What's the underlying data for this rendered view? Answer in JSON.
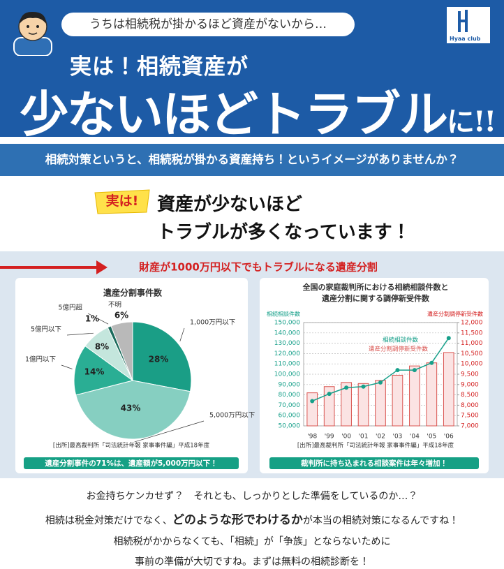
{
  "header": {
    "speech": "うちは相続税が掛かるほど資産がないから…",
    "logo": "Hyaa club",
    "title_line1": "実は！相続資産が",
    "title_main": "少ないほどトラブル",
    "title_suffix": "に!!"
  },
  "subtitle": "相続対策というと、相続税が掛かる資産持ち！というイメージがありませんか？",
  "callout": {
    "badge": "実は!",
    "lines": [
      "資産が少ないほど",
      "トラブルが多くなっています！"
    ]
  },
  "section_heading": "財産が1000万円以下でもトラブルになる遺産分割",
  "chart_data": [
    {
      "type": "pie",
      "title": "遺産分割事件数",
      "categories": [
        "1,000万円以下",
        "5,000万円以下",
        "1億円以下",
        "5億円以下",
        "5億円超",
        "不明"
      ],
      "values": [
        28,
        43,
        14,
        8,
        1,
        6
      ],
      "value_labels": [
        "28%",
        "43%",
        "14%",
        "8%",
        "1%",
        "6%"
      ],
      "colors": [
        "#1a9e86",
        "#86cfc1",
        "#2aae94",
        "#c4e6dd",
        "#1b6b5c",
        "#b9b9b9"
      ],
      "source": "[出所]最高裁判所「司法統計年報 家事事件編」平成18年度",
      "caption": "遺産分割事件の71%は、遺産額が5,000万円以下！"
    },
    {
      "type": "bar",
      "title": [
        "全国の家庭裁判所における相続相談件数と",
        "遺産分割に関する調停新受件数"
      ],
      "y_label": "相続相談件数",
      "y2_label": "遺産分割調停新受件数",
      "categories": [
        "'98",
        "'99",
        "'00",
        "'01",
        "'02",
        "'03",
        "'04",
        "'05",
        "'06"
      ],
      "series": [
        {
          "name": "遺産分割調停新受件数",
          "type": "bar",
          "axis": "y2",
          "color": "#d9534f",
          "values": [
            8600,
            8900,
            9100,
            9050,
            9200,
            9450,
            9900,
            10050,
            10550
          ]
        },
        {
          "name": "相続相談件数",
          "type": "line",
          "axis": "y",
          "color": "#17a08a",
          "values": [
            74000,
            81000,
            87000,
            88000,
            92000,
            104000,
            104000,
            111000,
            135000
          ]
        }
      ],
      "ylim": [
        50000,
        150000
      ],
      "yticks": [
        {
          "value": 50000,
          "label": "50,000"
        },
        {
          "value": 60000,
          "label": "60,000"
        },
        {
          "value": 70000,
          "label": "70,000"
        },
        {
          "value": 80000,
          "label": "80,000"
        },
        {
          "value": 90000,
          "label": "90,000"
        },
        {
          "value": 100000,
          "label": "100,000"
        },
        {
          "value": 110000,
          "label": "110,000"
        },
        {
          "value": 120000,
          "label": "120,000"
        },
        {
          "value": 130000,
          "label": "130,000"
        },
        {
          "value": 140000,
          "label": "140,000"
        },
        {
          "value": 150000,
          "label": "150,000"
        }
      ],
      "y2lim": [
        7000,
        12000
      ],
      "y2ticks": [
        {
          "value": 7000,
          "label": "7,000"
        },
        {
          "value": 7500,
          "label": "7,500"
        },
        {
          "value": 8000,
          "label": "8,000"
        },
        {
          "value": 8500,
          "label": "8,500"
        },
        {
          "value": 9000,
          "label": "9,000"
        },
        {
          "value": 9500,
          "label": "9,500"
        },
        {
          "value": 10000,
          "label": "10,000"
        },
        {
          "value": 10500,
          "label": "10,500"
        },
        {
          "value": 11000,
          "label": "11,000"
        },
        {
          "value": 11500,
          "label": "11,500"
        },
        {
          "value": 12000,
          "label": "12,000"
        }
      ],
      "grid": true,
      "source": "[出所]最高裁判所「司法統計年報 家事事件編」平成18年度",
      "caption": "裁判所に持ち込まれる相談案件は年々増加！"
    }
  ],
  "closing": {
    "line1": "お金持ちケンカせず？　それとも、しっかりとした準備をしているのか…？",
    "line2_before": "相続は税金対策だけでなく、",
    "line2_em": "どのような形でわけるか",
    "line2_after": "が本当の相続対策になるんですね！",
    "line3": "相続税がかからなくても、「相続」が「争族」とならないために",
    "line4": "事前の準備が大切ですね。まずは無料の相続診断を！"
  }
}
